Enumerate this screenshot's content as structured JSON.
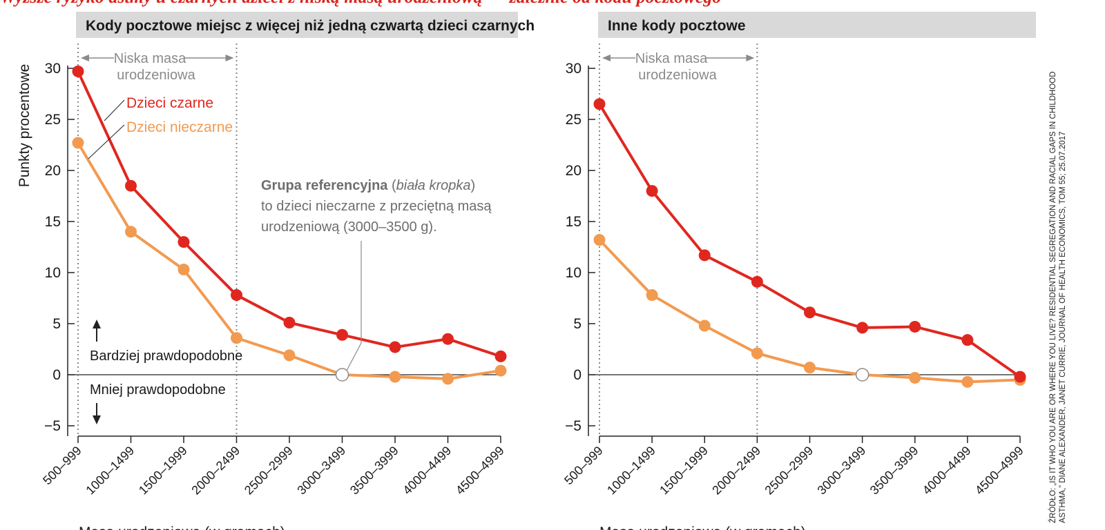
{
  "headline": "Wyższe ryzyko astmy u czarnych dzieci z niską masą urodzeniową — zależnie od kodu pocztowego",
  "colors": {
    "black_children": "#e0271f",
    "nonblack_children": "#f29a50",
    "reference_dot": "#ffffff",
    "panel_header": "#d9d9d9",
    "annotation": "#8a8a8a"
  },
  "ylabel": "Punkty procentowe",
  "xlabel": "Masa urodzeniowa (w gramach)",
  "low_birthweight_label": [
    "Niska masa",
    "urodzeniowa"
  ],
  "more_likely_label": "Bardziej prawdopodobne",
  "less_likely_label": "Mniej prawdopodobne",
  "series_labels": {
    "black": "Dzieci czarne",
    "nonblack": "Dzieci nieczarne"
  },
  "reference_note": {
    "bold": "Grupa referencyjna",
    "paren_open": " (",
    "italic": "biała kropka",
    "paren_close": ")",
    "line2": "to dzieci nieczarne z przeciętną masą",
    "line3": "urodzeniową (3000–3500 g)."
  },
  "source_lines": [
    "ŹRÓDŁO: „IS IT WHO YOU ARE OR WHERE YOU LIVE? RESIDENTIAL SEGREGATION AND RACIAL GAPS IN CHILDHOOD",
    "ASTHMA,” DIANE ALEXANDER, JANET CURRIE, JOURNAL OF HEALTH ECONOMICS, TOM 55; 25.07.2017"
  ],
  "chart_data": [
    {
      "type": "line",
      "title": "Kody pocztowe miejsc z więcej niż jedną czwartą dzieci czarnych",
      "xlabel": "Masa urodzeniowa (w gramach)",
      "ylabel": "Punkty procentowe",
      "categories": [
        "500–999",
        "1000–1499",
        "1500–1999",
        "2000–2499",
        "2500–2999",
        "3000–3499",
        "3500–3999",
        "4000–4499",
        "4500–4999"
      ],
      "ylim": [
        -5,
        30
      ],
      "yticks": [
        -5,
        0,
        5,
        10,
        15,
        20,
        25,
        30
      ],
      "low_birthweight_range": [
        "500–999",
        "2000–2499"
      ],
      "reference_category": "3000–3499",
      "series": [
        {
          "name": "Dzieci czarne",
          "values": [
            29.7,
            18.5,
            13.0,
            7.8,
            5.1,
            3.9,
            2.7,
            3.5,
            1.8
          ]
        },
        {
          "name": "Dzieci nieczarne",
          "values": [
            22.7,
            14.0,
            10.3,
            3.6,
            1.9,
            0.0,
            -0.2,
            -0.4,
            0.4
          ]
        }
      ]
    },
    {
      "type": "line",
      "title": "Inne kody pocztowe",
      "xlabel": "Masa urodzeniowa (w gramach)",
      "categories": [
        "500–999",
        "1000–1499",
        "1500–1999",
        "2000–2499",
        "2500–2999",
        "3000–3499",
        "3500–3999",
        "4000–4499",
        "4500–4999"
      ],
      "ylim": [
        -5,
        30
      ],
      "yticks": [
        -5,
        0,
        5,
        10,
        15,
        20,
        25,
        30
      ],
      "low_birthweight_range": [
        "500–999",
        "2000–2499"
      ],
      "reference_category": "3000–3499",
      "series": [
        {
          "name": "Dzieci czarne",
          "values": [
            26.5,
            18.0,
            11.7,
            9.1,
            6.1,
            4.6,
            4.7,
            3.4,
            -0.2
          ]
        },
        {
          "name": "Dzieci nieczarne",
          "values": [
            13.2,
            7.8,
            4.8,
            2.1,
            0.7,
            0.0,
            -0.3,
            -0.7,
            -0.5
          ]
        }
      ]
    }
  ]
}
